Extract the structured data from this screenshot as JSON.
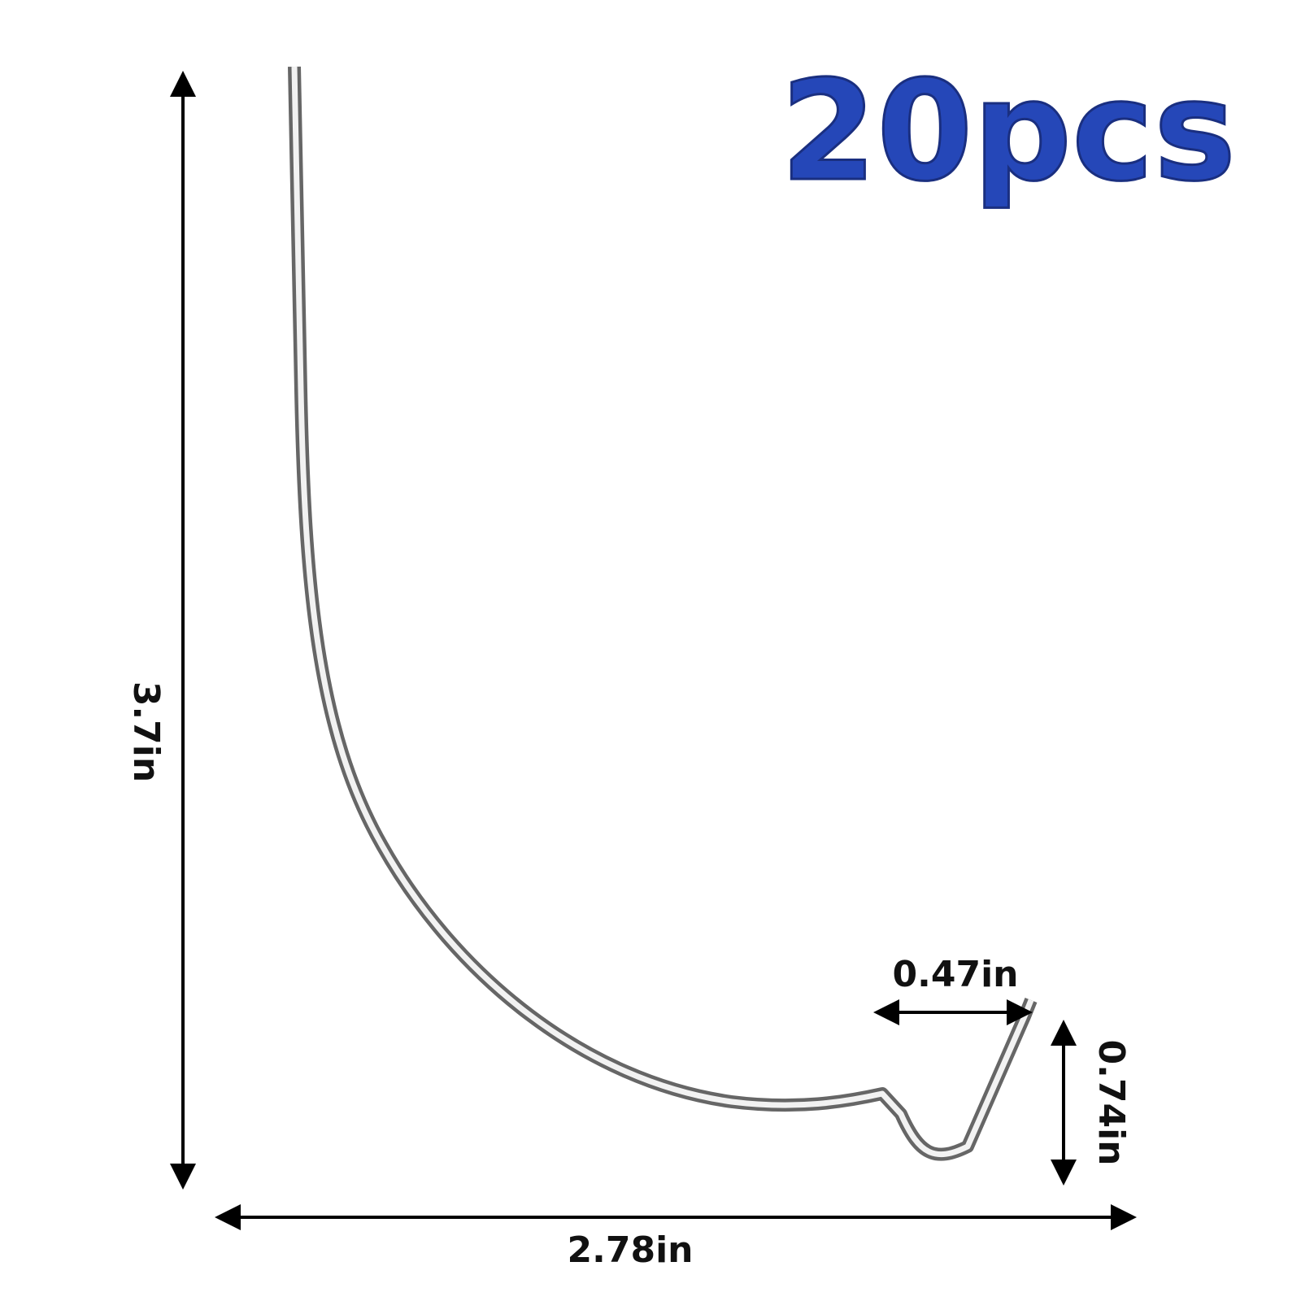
{
  "badge": "20pcs",
  "dimensions": {
    "height": "3.7in",
    "width": "2.78in",
    "hook_width": "0.47in",
    "hook_height": "0.74in"
  }
}
